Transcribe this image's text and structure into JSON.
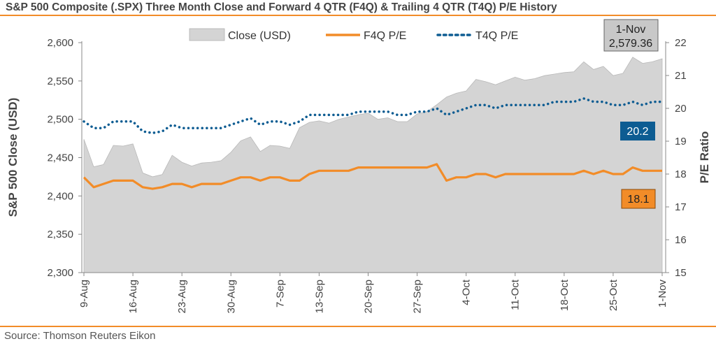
{
  "title": "S&P 500 Composite (.SPX) Three Month Close and Forward 4 QTR (F4Q) & Trailing 4 QTR (T4Q) P/E History",
  "source": "Source: Thomson Reuters Eikon",
  "chart_data": {
    "type": "area",
    "title": "S&P 500 Composite (.SPX) Three Month Close and Forward 4 QTR (F4Q) & Trailing 4 QTR (T4Q) P/E History",
    "ylabel": "S&P 500 Close (USD)",
    "y2label": "P/E Ratio",
    "ylim": [
      2300,
      2600
    ],
    "y2lim": [
      15,
      22
    ],
    "yticks": [
      "2,300",
      "2,350",
      "2,400",
      "2,450",
      "2,500",
      "2,550",
      "2,600"
    ],
    "y2ticks": [
      "15",
      "16",
      "17",
      "18",
      "19",
      "20",
      "21",
      "22"
    ],
    "xtick_labels": [
      "9-Aug",
      "16-Aug",
      "23-Aug",
      "30-Aug",
      "7-Sep",
      "13-Sep",
      "20-Sep",
      "27-Sep",
      "4-Oct",
      "11-Oct",
      "18-Oct",
      "25-Oct",
      "1-Nov"
    ],
    "xtick_index": [
      0,
      5,
      10,
      15,
      20,
      24,
      29,
      34,
      39,
      44,
      49,
      54,
      59
    ],
    "legend_position": "top",
    "grid": false,
    "colors": {
      "close": "#d4d4d4",
      "f4q": "#f28c28",
      "t4q": "#0d5c92"
    },
    "x": [
      "9-Aug",
      "10-Aug",
      "11-Aug",
      "14-Aug",
      "15-Aug",
      "16-Aug",
      "17-Aug",
      "18-Aug",
      "21-Aug",
      "22-Aug",
      "23-Aug",
      "24-Aug",
      "25-Aug",
      "28-Aug",
      "29-Aug",
      "30-Aug",
      "31-Aug",
      "1-Sep",
      "5-Sep",
      "6-Sep",
      "7-Sep",
      "8-Sep",
      "11-Sep",
      "12-Sep",
      "13-Sep",
      "14-Sep",
      "15-Sep",
      "18-Sep",
      "19-Sep",
      "20-Sep",
      "21-Sep",
      "22-Sep",
      "25-Sep",
      "26-Sep",
      "27-Sep",
      "28-Sep",
      "29-Sep",
      "2-Oct",
      "3-Oct",
      "4-Oct",
      "5-Oct",
      "6-Oct",
      "9-Oct",
      "10-Oct",
      "11-Oct",
      "12-Oct",
      "13-Oct",
      "16-Oct",
      "17-Oct",
      "18-Oct",
      "19-Oct",
      "20-Oct",
      "23-Oct",
      "24-Oct",
      "25-Oct",
      "26-Oct",
      "27-Oct",
      "30-Oct",
      "31-Oct",
      "1-Nov"
    ],
    "series": [
      {
        "name": "Close (USD)",
        "axis": "left",
        "values": [
          2474,
          2438,
          2441,
          2466,
          2465,
          2468,
          2430,
          2425,
          2428,
          2453,
          2444,
          2439,
          2443,
          2444,
          2446,
          2457,
          2472,
          2477,
          2458,
          2466,
          2465,
          2462,
          2489,
          2496,
          2498,
          2495,
          2500,
          2503,
          2506,
          2508,
          2500,
          2502,
          2497,
          2497,
          2507,
          2510,
          2519,
          2529,
          2534,
          2537,
          2552,
          2549,
          2545,
          2550,
          2555,
          2551,
          2553,
          2557,
          2559,
          2561,
          2562,
          2575,
          2565,
          2569,
          2557,
          2560,
          2581,
          2573,
          2575,
          2579
        ]
      },
      {
        "name": "F4Q P/E",
        "axis": "right",
        "values": [
          17.9,
          17.6,
          17.7,
          17.8,
          17.8,
          17.8,
          17.6,
          17.55,
          17.6,
          17.7,
          17.7,
          17.6,
          17.7,
          17.7,
          17.7,
          17.8,
          17.9,
          17.9,
          17.8,
          17.9,
          17.9,
          17.8,
          17.8,
          18.0,
          18.1,
          18.1,
          18.1,
          18.1,
          18.2,
          18.2,
          18.2,
          18.2,
          18.2,
          18.2,
          18.2,
          18.2,
          18.3,
          17.8,
          17.9,
          17.9,
          18.0,
          18.0,
          17.9,
          18.0,
          18.0,
          18.0,
          18.0,
          18.0,
          18.0,
          18.0,
          18.0,
          18.1,
          18.0,
          18.1,
          18.0,
          18.0,
          18.2,
          18.1,
          18.1,
          18.1
        ]
      },
      {
        "name": "T4Q P/E",
        "axis": "right",
        "values": [
          19.6,
          19.4,
          19.4,
          19.6,
          19.6,
          19.6,
          19.3,
          19.25,
          19.3,
          19.5,
          19.4,
          19.4,
          19.4,
          19.4,
          19.4,
          19.5,
          19.6,
          19.7,
          19.5,
          19.6,
          19.6,
          19.5,
          19.6,
          19.8,
          19.8,
          19.8,
          19.8,
          19.8,
          19.9,
          19.9,
          19.9,
          19.9,
          19.8,
          19.8,
          19.9,
          19.9,
          20.0,
          19.8,
          19.9,
          20.0,
          20.1,
          20.1,
          20.0,
          20.1,
          20.1,
          20.1,
          20.1,
          20.1,
          20.2,
          20.2,
          20.2,
          20.3,
          20.2,
          20.2,
          20.1,
          20.1,
          20.2,
          20.1,
          20.2,
          20.2
        ]
      }
    ],
    "annotations": {
      "close_date": "1-Nov",
      "close_value": "2,579.36",
      "t4q_label": "20.2",
      "f4q_label": "18.1"
    }
  }
}
